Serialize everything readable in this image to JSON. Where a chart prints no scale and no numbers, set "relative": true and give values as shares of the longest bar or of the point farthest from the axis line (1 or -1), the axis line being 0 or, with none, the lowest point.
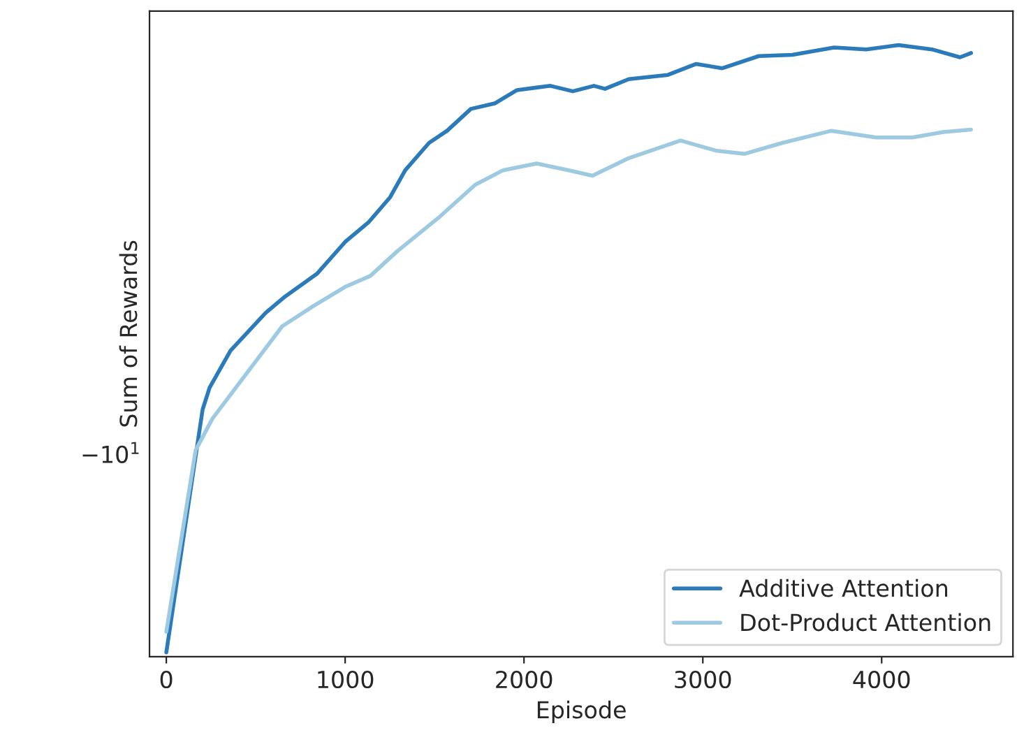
{
  "chart_data": {
    "type": "line",
    "relative": true,
    "xlabel": "Episode",
    "ylabel": "Sum of Rewards",
    "x": [
      0,
      203,
      242,
      359,
      555,
      664,
      844,
      1000,
      1133,
      1250,
      1336,
      1469,
      1570,
      1703,
      1836,
      1961,
      2148,
      2273,
      2391,
      2453,
      2586,
      2805,
      2961,
      3109,
      3313,
      3500,
      3734,
      3914,
      4094,
      4281,
      4438,
      4500
    ],
    "xlim": [
      -94,
      4734
    ],
    "xticks": [
      0,
      1000,
      2000,
      3000,
      4000
    ],
    "series": [
      {
        "name": "Additive Attention",
        "color": "#2b7bba",
        "values": [
          0,
          0.4,
          0.436,
          0.497,
          0.559,
          0.586,
          0.624,
          0.676,
          0.709,
          0.749,
          0.794,
          0.839,
          0.859,
          0.895,
          0.904,
          0.926,
          0.933,
          0.924,
          0.933,
          0.928,
          0.944,
          0.951,
          0.969,
          0.962,
          0.982,
          0.984,
          0.996,
          0.993,
          1.0,
          0.993,
          0.98,
          0.987
        ]
      },
      {
        "name": "Dot-Product Attention",
        "color": "#9ecae1",
        "x": [
          0,
          164,
          258,
          430,
          648,
          820,
          1000,
          1141,
          1289,
          1523,
          1727,
          1883,
          2070,
          2250,
          2383,
          2586,
          2875,
          3078,
          3234,
          3445,
          3719,
          3969,
          4172,
          4344,
          4500
        ],
        "values": [
          0.034,
          0.333,
          0.385,
          0.452,
          0.537,
          0.57,
          0.602,
          0.62,
          0.66,
          0.716,
          0.77,
          0.794,
          0.805,
          0.794,
          0.785,
          0.814,
          0.843,
          0.826,
          0.821,
          0.839,
          0.859,
          0.848,
          0.848,
          0.857,
          0.861
        ]
      }
    ],
    "annotations": [
      "−10$^{1}$"
    ],
    "legend": "bottom right",
    "grid": false
  }
}
